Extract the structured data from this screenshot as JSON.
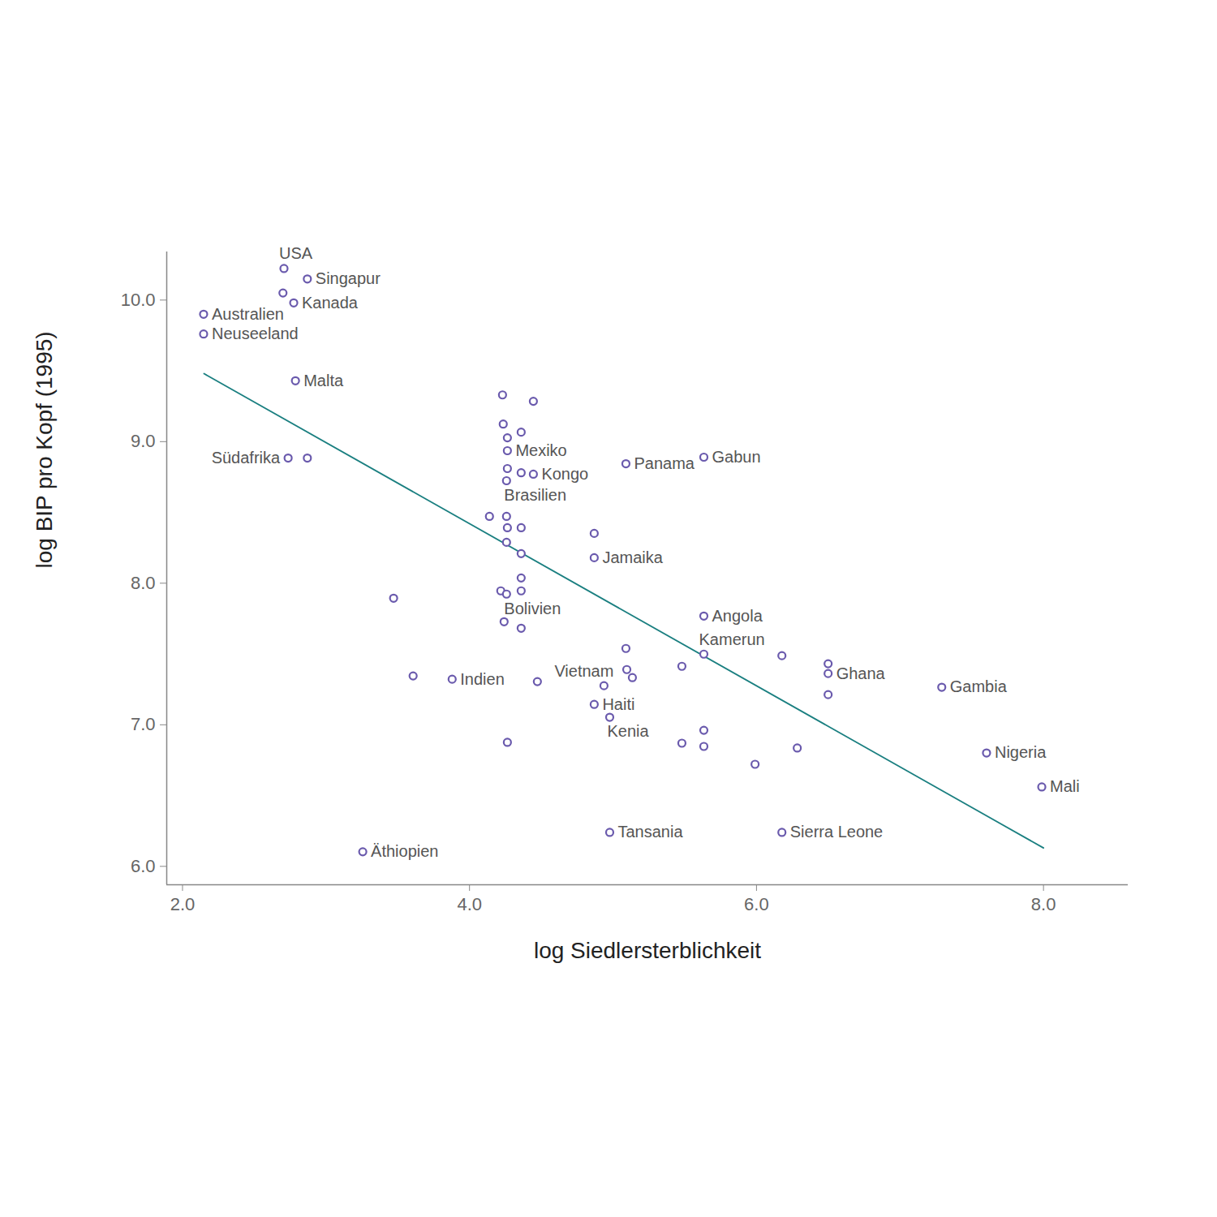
{
  "chart_data": {
    "type": "scatter",
    "x_label": "log Siedlersterblichkeit",
    "y_label": "log BIP pro Kopf (1995)",
    "xlim": [
      1.89,
      8.59
    ],
    "ylim": [
      5.87,
      10.34
    ],
    "xticks": [
      2,
      4,
      6,
      8
    ],
    "yticks": [
      6,
      7,
      8,
      9,
      10
    ],
    "color": "#6a5aad",
    "marker": "open_circle",
    "x": [
      2.707,
      2.87,
      2.7,
      2.775,
      2.147,
      2.147,
      2.787,
      2.736,
      2.87,
      4.23,
      4.445,
      4.235,
      4.36,
      4.264,
      4.264,
      5.09,
      5.633,
      4.264,
      4.36,
      4.445,
      4.258,
      4.139,
      4.258,
      4.264,
      4.36,
      4.869,
      4.258,
      4.869,
      4.36,
      4.36,
      3.471,
      4.218,
      4.258,
      4.36,
      4.241,
      4.36,
      5.633,
      5.633,
      5.09,
      6.177,
      6.499,
      6.499,
      6.499,
      7.291,
      5.48,
      5.096,
      5.135,
      4.937,
      3.607,
      3.879,
      4.473,
      4.869,
      4.977,
      4.264,
      5.633,
      5.48,
      5.633,
      6.284,
      5.99,
      7.603,
      7.988,
      4.977,
      6.177,
      3.256
    ],
    "values": [
      10.223,
      10.149,
      10.05,
      9.98,
      9.9,
      9.76,
      9.43,
      8.884,
      8.884,
      9.33,
      9.285,
      9.124,
      9.067,
      9.027,
      8.936,
      8.844,
      8.89,
      8.81,
      8.78,
      8.77,
      8.724,
      8.472,
      8.472,
      8.392,
      8.392,
      8.352,
      8.289,
      8.18,
      8.209,
      8.037,
      7.894,
      7.946,
      7.923,
      7.946,
      7.728,
      7.682,
      7.768,
      7.499,
      7.539,
      7.488,
      7.431,
      7.362,
      7.213,
      7.265,
      7.413,
      7.39,
      7.333,
      7.276,
      7.345,
      7.322,
      7.305,
      7.144,
      7.053,
      6.876,
      6.961,
      6.87,
      6.847,
      6.836,
      6.721,
      6.801,
      6.561,
      6.24,
      6.24,
      6.103
    ],
    "labels": [
      "USA",
      "Singapur",
      null,
      "Kanada",
      "Australien",
      "Neuseeland",
      "Malta",
      "Südafrika",
      null,
      null,
      null,
      null,
      null,
      null,
      "Mexiko",
      "Panama",
      "Gabun",
      null,
      null,
      "Kongo",
      "Brasilien",
      null,
      null,
      null,
      null,
      null,
      null,
      "Jamaika",
      null,
      null,
      null,
      null,
      "Bolivien",
      null,
      null,
      null,
      "Angola",
      "Kamerun",
      null,
      null,
      null,
      "Ghana",
      null,
      "Gambia",
      null,
      null,
      null,
      "Vietnam",
      null,
      "Indien",
      null,
      "Haiti",
      "Kenia",
      null,
      null,
      null,
      null,
      null,
      null,
      "Nigeria",
      "Mali",
      "Tansania",
      "Sierra Leone",
      "Äthiopien"
    ],
    "trend": {
      "type": "line",
      "color": "#1a7f80",
      "x": [
        2.15,
        8.0
      ],
      "values": [
        9.48,
        6.13
      ]
    }
  }
}
